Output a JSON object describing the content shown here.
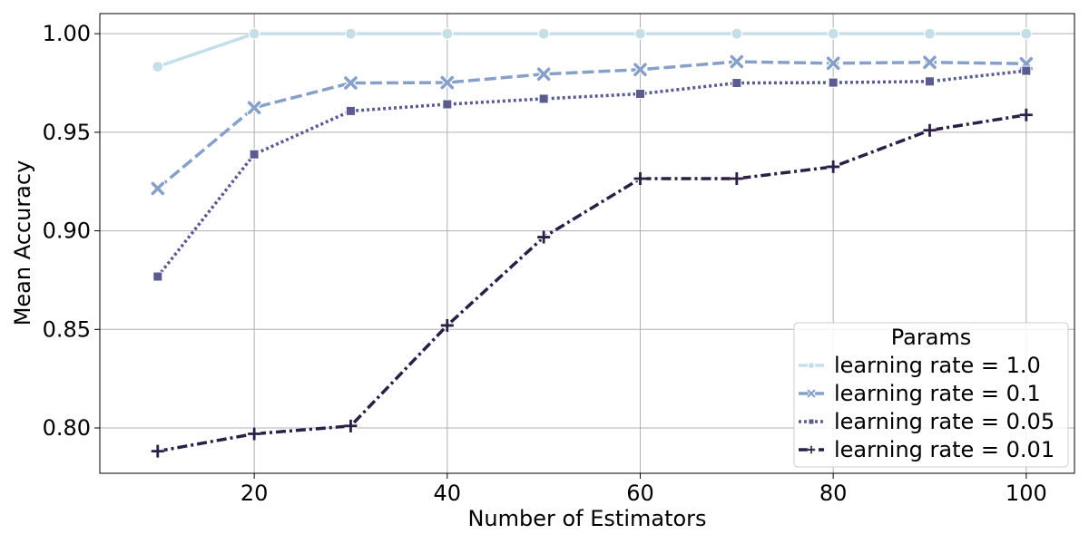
{
  "chart_data": {
    "type": "line",
    "title": "",
    "xlabel": "Number of Estimators",
    "ylabel": "Mean Accuracy",
    "xlim": [
      4,
      105
    ],
    "ylim": [
      0.777,
      1.0102
    ],
    "xticks": [
      20,
      40,
      60,
      80,
      100
    ],
    "yticks": [
      0.8,
      0.85,
      0.9,
      0.95,
      1.0
    ],
    "ytick_labels": [
      "0.80",
      "0.85",
      "0.90",
      "0.95",
      "1.00"
    ],
    "grid": true,
    "legend": {
      "title": "Params",
      "position": "bottom-right"
    },
    "x": [
      10,
      20,
      30,
      40,
      50,
      60,
      70,
      80,
      90,
      100
    ],
    "series": [
      {
        "name": "learning rate = 1.0",
        "color": "#c5dfe9",
        "marker": "circle",
        "dash": "solid",
        "values": [
          0.9833,
          1.0,
          1.0,
          1.0,
          1.0,
          1.0,
          1.0,
          1.0,
          1.0,
          1.0
        ]
      },
      {
        "name": "learning rate = 0.1",
        "color": "#86a0c9",
        "marker": "x",
        "dash": "dashed",
        "values": [
          0.9215,
          0.9625,
          0.975,
          0.9752,
          0.9795,
          0.9818,
          0.9858,
          0.985,
          0.9855,
          0.9848
        ]
      },
      {
        "name": "learning rate = 0.05",
        "color": "#5a5b8f",
        "marker": "square",
        "dash": "dotted",
        "values": [
          0.8768,
          0.9388,
          0.9608,
          0.9642,
          0.967,
          0.9695,
          0.975,
          0.9752,
          0.9758,
          0.9812
        ]
      },
      {
        "name": "learning rate = 0.01",
        "color": "#2b1f45",
        "marker": "plus",
        "dash": "dashdot",
        "values": [
          0.7882,
          0.797,
          0.801,
          0.852,
          0.8968,
          0.9265,
          0.9265,
          0.9325,
          0.951,
          0.9588
        ]
      }
    ]
  }
}
